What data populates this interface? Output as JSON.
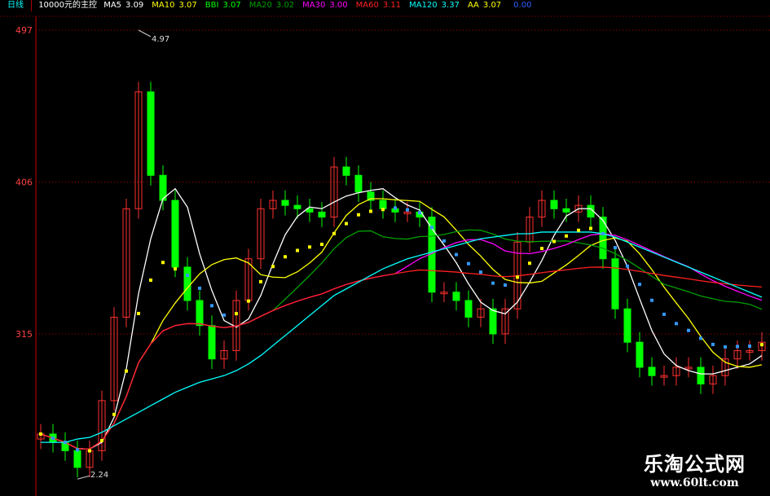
{
  "period_label": "日线",
  "indicator_name": "10000元的主控",
  "legend": [
    {
      "label": "MA5",
      "value": "3.09",
      "color": "#ffffff"
    },
    {
      "label": "MA10",
      "value": "3.07",
      "color": "#ffff00"
    },
    {
      "label": "BBI",
      "value": "3.07",
      "color": "#00ff00"
    },
    {
      "label": "MA20",
      "value": "3.02",
      "color": "#00a000"
    },
    {
      "label": "MA30",
      "value": "3.00",
      "color": "#ff00ff"
    },
    {
      "label": "MA60",
      "value": "3.11",
      "color": "#ff2020"
    },
    {
      "label": "MA120",
      "value": "3.37",
      "color": "#00ffff"
    },
    {
      "label": "AA",
      "value": "3.07",
      "color": "#ffff00"
    },
    {
      "label": "",
      "value": "0.00",
      "color": "#3060ff"
    }
  ],
  "chart_data": {
    "type": "candlestick",
    "y_tick_labels": [
      "497",
      "406",
      "315"
    ],
    "y_ticks": [
      4.97,
      4.06,
      3.15
    ],
    "ylim": [
      2.2,
      4.97
    ],
    "grid": "horizontal dotted",
    "annotations": [
      {
        "text": "4.97",
        "index": 8
      },
      {
        "text": "2.24",
        "index": 3
      }
    ],
    "close": [
      2.55,
      2.5,
      2.45,
      2.35,
      2.45,
      2.75,
      3.25,
      3.9,
      4.6,
      4.1,
      3.95,
      3.55,
      3.35,
      3.2,
      3.0,
      3.05,
      3.35,
      3.6,
      3.9,
      3.95,
      3.92,
      3.9,
      3.88,
      3.85,
      4.15,
      4.1,
      4.0,
      3.95,
      3.9,
      3.88,
      3.88,
      3.85,
      3.4,
      3.4,
      3.35,
      3.25,
      3.3,
      3.15,
      3.3,
      3.7,
      3.85,
      3.95,
      3.9,
      3.88,
      3.92,
      3.85,
      3.6,
      3.3,
      3.1,
      2.95,
      2.9,
      2.9,
      2.95,
      2.95,
      2.85,
      2.9,
      3.0,
      3.05,
      3.05,
      3.1
    ],
    "ma120": [
      2.5,
      2.5,
      2.5,
      2.52,
      2.53,
      2.56,
      2.6,
      2.64,
      2.68,
      2.72,
      2.76,
      2.8,
      2.83,
      2.86,
      2.88,
      2.9,
      2.93,
      2.97,
      3.02,
      3.08,
      3.14,
      3.2,
      3.26,
      3.32,
      3.38,
      3.42,
      3.46,
      3.5,
      3.54,
      3.57,
      3.6,
      3.62,
      3.64,
      3.66,
      3.68,
      3.7,
      3.72,
      3.73,
      3.74,
      3.75,
      3.75,
      3.76,
      3.76,
      3.76,
      3.76,
      3.76,
      3.75,
      3.73,
      3.7,
      3.67,
      3.64,
      3.61,
      3.58,
      3.55,
      3.52,
      3.49,
      3.46,
      3.43,
      3.4,
      3.37
    ],
    "up_color": "#ff3030",
    "down_color": "#00ff00"
  },
  "watermark": {
    "title": "乐淘公式网",
    "url": "www.60lt.com"
  }
}
